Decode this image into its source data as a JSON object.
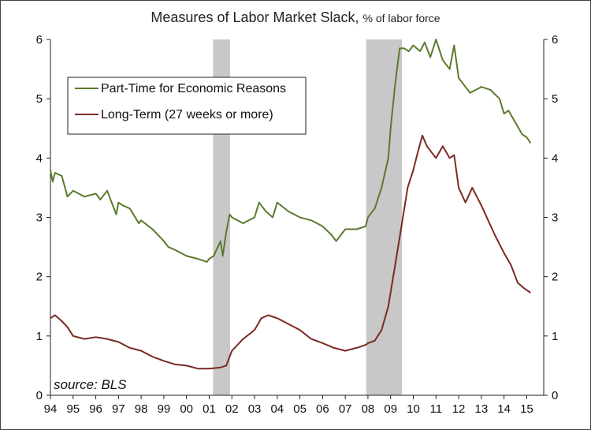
{
  "chart_data": {
    "type": "line",
    "title": "Measures of Labor Market Slack,",
    "subtitle": "% of labor force",
    "source": "source: BLS",
    "ylim": [
      0,
      6
    ],
    "y_ticks": [
      "0",
      "1",
      "2",
      "3",
      "4",
      "5",
      "6"
    ],
    "x_range": [
      1994,
      2015.75
    ],
    "x_ticks": [
      "94",
      "95",
      "96",
      "97",
      "98",
      "99",
      "00",
      "01",
      "02",
      "03",
      "04",
      "05",
      "06",
      "07",
      "08",
      "09",
      "10",
      "11",
      "12",
      "13",
      "14",
      "15"
    ],
    "legend_position": "top-left",
    "recessions": [
      [
        2001.17,
        2001.92
      ],
      [
        2007.92,
        2009.5
      ]
    ],
    "colors": {
      "part_time": "#5b7a2e",
      "long_term": "#7a2a24",
      "recession": "#c8c8c8"
    },
    "series": [
      {
        "name": "Part-Time for Economic Reasons",
        "x": [
          1994.0,
          1994.1,
          1994.2,
          1994.5,
          1994.75,
          1995.0,
          1995.5,
          1996.0,
          1996.2,
          1996.5,
          1996.9,
          1997.0,
          1997.2,
          1997.5,
          1997.9,
          1998.0,
          1998.5,
          1999.0,
          1999.2,
          1999.5,
          2000.0,
          2000.5,
          2000.9,
          2001.0,
          2001.2,
          2001.5,
          2001.6,
          2001.75,
          2001.9,
          2002.0,
          2002.5,
          2003.0,
          2003.2,
          2003.5,
          2003.8,
          2004.0,
          2004.5,
          2005.0,
          2005.5,
          2006.0,
          2006.4,
          2006.6,
          2007.0,
          2007.5,
          2007.9,
          2008.0,
          2008.3,
          2008.6,
          2008.9,
          2009.0,
          2009.2,
          2009.4,
          2009.6,
          2009.8,
          2010.0,
          2010.3,
          2010.5,
          2010.75,
          2011.0,
          2011.3,
          2011.6,
          2011.8,
          2012.0,
          2012.5,
          2013.0,
          2013.4,
          2013.8,
          2014.0,
          2014.2,
          2014.5,
          2014.8,
          2015.0,
          2015.17
        ],
        "values": [
          3.8,
          3.6,
          3.75,
          3.7,
          3.35,
          3.45,
          3.35,
          3.4,
          3.3,
          3.45,
          3.05,
          3.25,
          3.2,
          3.15,
          2.9,
          2.95,
          2.8,
          2.6,
          2.5,
          2.45,
          2.35,
          2.3,
          2.25,
          2.3,
          2.35,
          2.6,
          2.35,
          2.75,
          3.05,
          3.0,
          2.9,
          3.0,
          3.25,
          3.1,
          3.0,
          3.25,
          3.1,
          3.0,
          2.95,
          2.85,
          2.7,
          2.6,
          2.8,
          2.8,
          2.85,
          3.0,
          3.15,
          3.5,
          4.0,
          4.5,
          5.25,
          5.85,
          5.85,
          5.8,
          5.9,
          5.8,
          5.95,
          5.7,
          6.0,
          5.65,
          5.5,
          5.9,
          5.35,
          5.1,
          5.2,
          5.15,
          5.0,
          4.75,
          4.8,
          4.6,
          4.4,
          4.35,
          4.25
        ]
      },
      {
        "name": "Long-Term (27 weeks or more)",
        "x": [
          1994.0,
          1994.2,
          1994.5,
          1994.75,
          1995.0,
          1995.5,
          1996.0,
          1996.5,
          1997.0,
          1997.5,
          1998.0,
          1998.5,
          1999.0,
          1999.5,
          2000.0,
          2000.5,
          2001.0,
          2001.5,
          2001.75,
          2002.0,
          2002.5,
          2003.0,
          2003.3,
          2003.6,
          2004.0,
          2004.5,
          2005.0,
          2005.5,
          2006.0,
          2006.5,
          2007.0,
          2007.5,
          2007.9,
          2008.0,
          2008.3,
          2008.6,
          2008.9,
          2009.2,
          2009.5,
          2009.75,
          2010.0,
          2010.2,
          2010.4,
          2010.6,
          2010.8,
          2011.0,
          2011.3,
          2011.6,
          2011.8,
          2012.0,
          2012.3,
          2012.6,
          2013.0,
          2013.3,
          2013.6,
          2014.0,
          2014.3,
          2014.6,
          2014.9,
          2015.17
        ],
        "values": [
          1.3,
          1.35,
          1.25,
          1.15,
          1.0,
          0.95,
          0.98,
          0.95,
          0.9,
          0.8,
          0.75,
          0.65,
          0.58,
          0.52,
          0.5,
          0.45,
          0.45,
          0.47,
          0.5,
          0.75,
          0.95,
          1.1,
          1.3,
          1.35,
          1.3,
          1.2,
          1.1,
          0.95,
          0.88,
          0.8,
          0.75,
          0.8,
          0.85,
          0.88,
          0.92,
          1.1,
          1.5,
          2.2,
          2.9,
          3.5,
          3.8,
          4.1,
          4.38,
          4.2,
          4.1,
          4.0,
          4.2,
          4.0,
          4.05,
          3.5,
          3.25,
          3.5,
          3.2,
          2.95,
          2.7,
          2.4,
          2.2,
          1.9,
          1.8,
          1.73
        ]
      }
    ]
  }
}
